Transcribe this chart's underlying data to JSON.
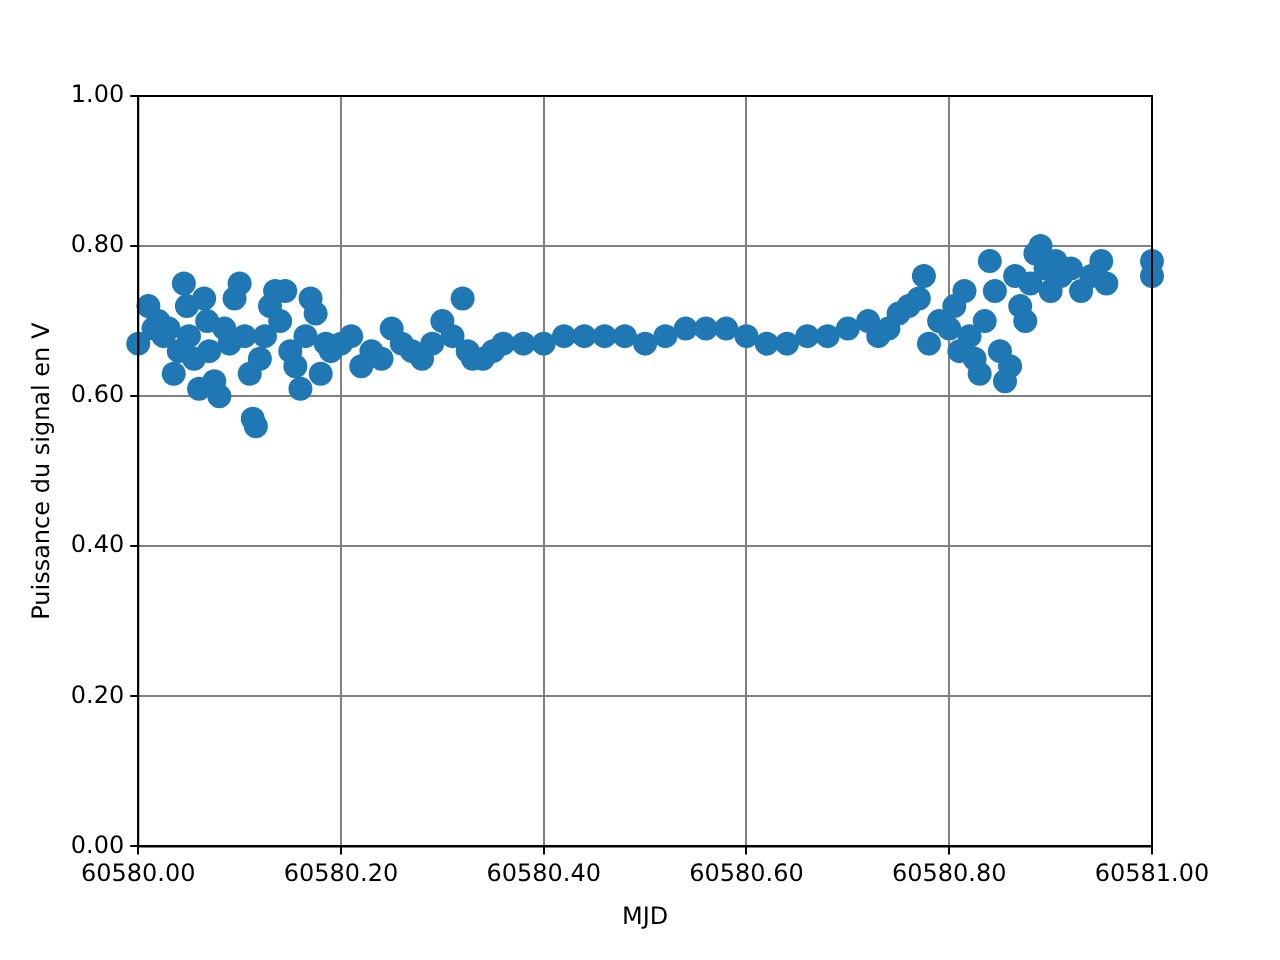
{
  "chart_data": {
    "type": "scatter",
    "xlabel": "MJD",
    "ylabel": "Puissance du signal en V",
    "marker": "circle",
    "grid": true,
    "legend": false,
    "xlim": [
      60580.0,
      60581.0
    ],
    "xticks": [
      {
        "value": 60580.0,
        "label": "60580.00"
      },
      {
        "value": 60580.2,
        "label": "60580.20"
      },
      {
        "value": 60580.4,
        "label": "60580.40"
      },
      {
        "value": 60580.6,
        "label": "60580.60"
      },
      {
        "value": 60580.8,
        "label": "60580.80"
      },
      {
        "value": 60581.0,
        "label": "60581.00"
      }
    ],
    "ylim": [
      0,
      1
    ],
    "yticks": [
      {
        "value": 0,
        "label": "0.00"
      },
      {
        "value": 0.2,
        "label": "0.20"
      },
      {
        "value": 0.4,
        "label": "0.40"
      },
      {
        "value": 0.6,
        "label": "0.60"
      },
      {
        "value": 0.8,
        "label": "0.80"
      },
      {
        "value": 1,
        "label": "1.00"
      }
    ],
    "series": [
      {
        "color": "#1f77b4",
        "x": [
          60580.0,
          60580.01,
          60580.015,
          60580.02,
          60580.025,
          60580.03,
          60580.035,
          60580.04,
          60580.045,
          60580.048,
          60580.05,
          60580.055,
          60580.06,
          60580.065,
          60580.068,
          60580.07,
          60580.075,
          60580.08,
          60580.085,
          60580.09,
          60580.095,
          60580.1,
          60580.105,
          60580.11,
          60580.113,
          60580.116,
          60580.12,
          60580.125,
          60580.13,
          60580.135,
          60580.14,
          60580.145,
          60580.15,
          60580.155,
          60580.16,
          60580.165,
          60580.17,
          60580.175,
          60580.18,
          60580.185,
          60580.19,
          60580.2,
          60580.21,
          60580.22,
          60580.23,
          60580.24,
          60580.25,
          60580.26,
          60580.27,
          60580.28,
          60580.29,
          60580.3,
          60580.31,
          60580.32,
          60580.325,
          60580.33,
          60580.34,
          60580.35,
          60580.36,
          60580.38,
          60580.4,
          60580.42,
          60580.44,
          60580.46,
          60580.48,
          60580.5,
          60580.52,
          60580.54,
          60580.56,
          60580.58,
          60580.6,
          60580.62,
          60580.64,
          60580.66,
          60580.68,
          60580.7,
          60580.72,
          60580.73,
          60580.74,
          60580.75,
          60580.76,
          60580.77,
          60580.775,
          60580.78,
          60580.79,
          60580.8,
          60580.805,
          60580.81,
          60580.815,
          60580.82,
          60580.825,
          60580.83,
          60580.835,
          60580.84,
          60580.845,
          60580.85,
          60580.855,
          60580.86,
          60580.865,
          60580.87,
          60580.875,
          60580.88,
          60580.885,
          60580.89,
          60580.895,
          60580.9,
          60580.905,
          60580.91,
          60580.92,
          60580.93,
          60580.94,
          60580.95,
          60580.955,
          60581.0,
          60581.0
        ],
        "values": [
          0.67,
          0.72,
          0.69,
          0.7,
          0.68,
          0.69,
          0.63,
          0.66,
          0.75,
          0.72,
          0.68,
          0.65,
          0.61,
          0.73,
          0.7,
          0.66,
          0.62,
          0.6,
          0.69,
          0.67,
          0.73,
          0.75,
          0.68,
          0.63,
          0.57,
          0.56,
          0.65,
          0.68,
          0.72,
          0.74,
          0.7,
          0.74,
          0.66,
          0.64,
          0.61,
          0.68,
          0.73,
          0.71,
          0.63,
          0.67,
          0.66,
          0.67,
          0.68,
          0.64,
          0.66,
          0.65,
          0.69,
          0.67,
          0.66,
          0.65,
          0.67,
          0.7,
          0.68,
          0.73,
          0.66,
          0.65,
          0.65,
          0.66,
          0.67,
          0.67,
          0.67,
          0.68,
          0.68,
          0.68,
          0.68,
          0.67,
          0.68,
          0.69,
          0.69,
          0.69,
          0.68,
          0.67,
          0.67,
          0.68,
          0.68,
          0.69,
          0.7,
          0.68,
          0.69,
          0.71,
          0.72,
          0.73,
          0.76,
          0.67,
          0.7,
          0.69,
          0.72,
          0.66,
          0.74,
          0.68,
          0.65,
          0.63,
          0.7,
          0.78,
          0.74,
          0.66,
          0.62,
          0.64,
          0.76,
          0.72,
          0.7,
          0.75,
          0.79,
          0.8,
          0.77,
          0.74,
          0.78,
          0.76,
          0.77,
          0.74,
          0.76,
          0.78,
          0.75,
          0.76,
          0.78
        ]
      }
    ]
  }
}
